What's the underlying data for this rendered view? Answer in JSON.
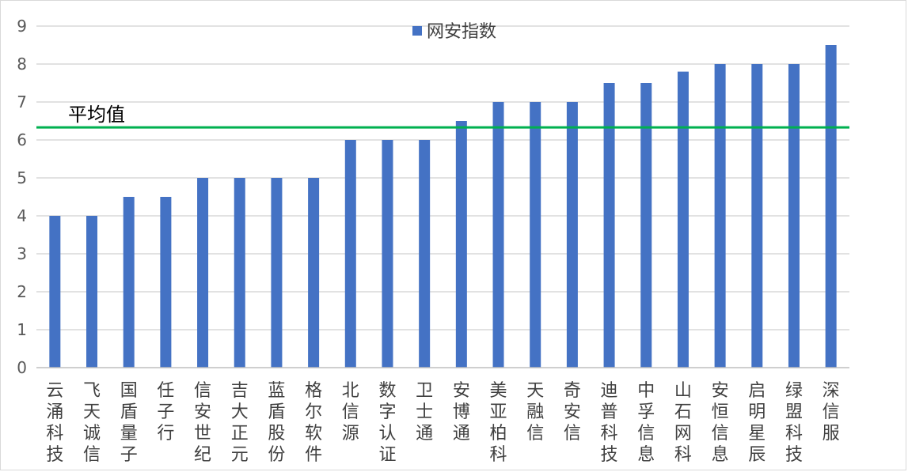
{
  "chart_data": {
    "type": "bar",
    "title": "",
    "xlabel": "",
    "ylabel": "",
    "ylim": [
      0,
      9
    ],
    "yticks": [
      0,
      1,
      2,
      3,
      4,
      5,
      6,
      7,
      8,
      9
    ],
    "grid": true,
    "legend_position": "top-center",
    "categories": [
      "云涌科技",
      "飞天诚信",
      "国盾量子",
      "任子行",
      "信安世纪",
      "吉大正元",
      "蓝盾股份",
      "格尔软件",
      "北信源",
      "数字认证",
      "卫士通",
      "安博通",
      "美亚柏科",
      "天融信",
      "奇安信",
      "迪普科技",
      "中孚信息",
      "山石网科",
      "安恒信息",
      "启明星辰",
      "绿盟科技",
      "深信服"
    ],
    "series": [
      {
        "name": "网安指数",
        "color": "#4472C4",
        "values": [
          4,
          4,
          4.5,
          4.5,
          5,
          5,
          5,
          5,
          6,
          6,
          6,
          6.5,
          7,
          7,
          7,
          7.5,
          7.5,
          7.8,
          8,
          8,
          8,
          8.5
        ]
      }
    ],
    "reference_line": {
      "label": "平均值",
      "value": 6.33,
      "color": "#00B050"
    }
  }
}
